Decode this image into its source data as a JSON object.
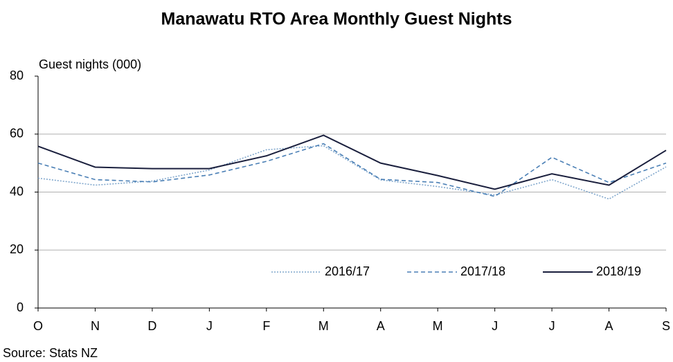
{
  "chart_data": {
    "type": "line",
    "title": "Manawatu RTO Area Monthly Guest Nights",
    "y_label": "Guest nights (000)",
    "source": "Source: Stats NZ",
    "categories": [
      "O",
      "N",
      "D",
      "J",
      "F",
      "M",
      "A",
      "M",
      "J",
      "J",
      "A",
      "S"
    ],
    "series": [
      {
        "name": "2016/17",
        "color": "#7fa6cc",
        "style": "dotted",
        "values": [
          44.8,
          42.4,
          43.8,
          47.6,
          54.6,
          56,
          44.2,
          41.9,
          39,
          44.3,
          37.6,
          48.7
        ]
      },
      {
        "name": "2017/18",
        "color": "#4a7fb5",
        "style": "dashed",
        "values": [
          50,
          44.3,
          43.5,
          45.9,
          50.6,
          56.7,
          44.4,
          43.3,
          38.5,
          52,
          43.3,
          50
        ]
      },
      {
        "name": "2018/19",
        "color": "#1a1f3d",
        "style": "solid",
        "values": [
          55.8,
          48.6,
          48.1,
          48.1,
          52.5,
          59.6,
          50,
          45.7,
          41,
          46.3,
          42.4,
          54.4
        ]
      }
    ],
    "ylim": [
      0,
      80
    ],
    "yticks": [
      0,
      20,
      40,
      60,
      80
    ],
    "grid": true,
    "legend": "bottom-right"
  }
}
